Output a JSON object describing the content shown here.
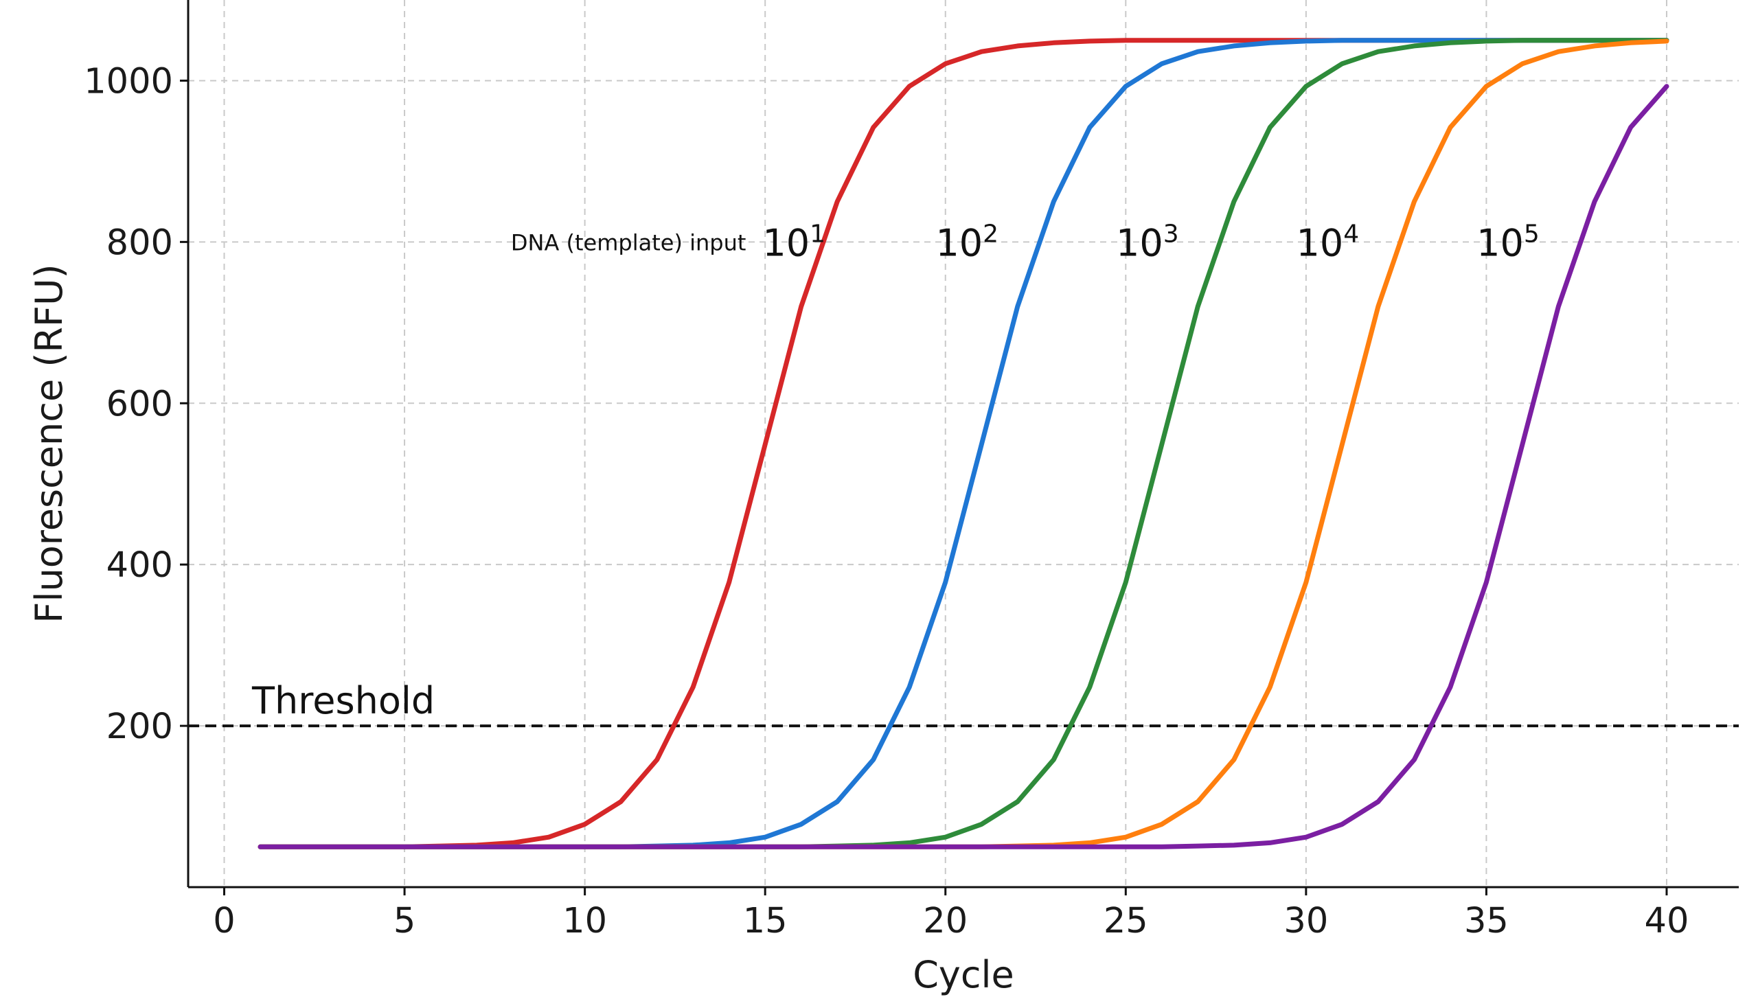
{
  "chart_data": {
    "type": "line",
    "title": "",
    "xlabel": "Cycle",
    "ylabel": "Fluorescence (RFU)",
    "xlim": [
      -1,
      42
    ],
    "ylim": [
      0,
      1100
    ],
    "xticks": [
      0,
      5,
      10,
      15,
      20,
      25,
      30,
      35,
      40
    ],
    "yticks": [
      200,
      400,
      600,
      800,
      1000
    ],
    "grid": true,
    "legend": "none",
    "x": [
      1,
      2,
      3,
      4,
      5,
      6,
      7,
      8,
      9,
      10,
      11,
      12,
      13,
      14,
      15,
      16,
      17,
      18,
      19,
      20,
      21,
      22,
      23,
      24,
      25,
      26,
      27,
      28,
      29,
      30,
      31,
      32,
      33,
      34,
      35,
      36,
      37,
      38,
      39,
      40
    ],
    "series": [
      {
        "color": "#d62728",
        "midpoint": 15,
        "label_base": "10",
        "label_exp": "1",
        "label_cycle": 15.8,
        "values": [
          50,
          50,
          50,
          50,
          50,
          51,
          52,
          55,
          62,
          78,
          106,
          158,
          248,
          378,
          549,
          720,
          850,
          942,
          993,
          1021,
          1036,
          1043,
          1047,
          1049,
          1050,
          1050,
          1050,
          1050,
          1050,
          1050,
          1050,
          1050,
          1050,
          1050,
          1050,
          1050,
          1050,
          1050,
          1050,
          1050
        ]
      },
      {
        "color": "#1f77d4",
        "midpoint": 20,
        "label_base": "10",
        "label_exp": "2",
        "label_cycle": 20.6,
        "values": [
          50,
          50,
          50,
          50,
          50,
          50,
          50,
          50,
          50,
          50,
          50,
          51,
          52,
          55,
          62,
          78,
          106,
          158,
          248,
          378,
          549,
          720,
          850,
          942,
          993,
          1021,
          1036,
          1043,
          1047,
          1049,
          1050,
          1050,
          1050,
          1050,
          1050,
          1050,
          1050,
          1050,
          1050,
          1050
        ]
      },
      {
        "color": "#2e8b3a",
        "midpoint": 25,
        "label_base": "10",
        "label_exp": "3",
        "label_cycle": 25.6,
        "values": [
          50,
          50,
          50,
          50,
          50,
          50,
          50,
          50,
          50,
          50,
          50,
          50,
          50,
          50,
          50,
          50,
          51,
          52,
          55,
          62,
          78,
          106,
          158,
          248,
          378,
          549,
          720,
          850,
          942,
          993,
          1021,
          1036,
          1043,
          1047,
          1049,
          1050,
          1050,
          1050,
          1050,
          1050
        ]
      },
      {
        "color": "#ff7f0e",
        "midpoint": 30,
        "label_base": "10",
        "label_exp": "4",
        "label_cycle": 30.6,
        "values": [
          50,
          50,
          50,
          50,
          50,
          50,
          50,
          50,
          50,
          50,
          50,
          50,
          50,
          50,
          50,
          50,
          50,
          50,
          50,
          50,
          50,
          51,
          52,
          55,
          62,
          78,
          106,
          158,
          248,
          378,
          549,
          720,
          850,
          942,
          993,
          1021,
          1036,
          1043,
          1047,
          1049
        ]
      },
      {
        "color": "#7b1fa2",
        "midpoint": 35,
        "label_base": "10",
        "label_exp": "5",
        "label_cycle": 35.6,
        "values": [
          50,
          50,
          50,
          50,
          50,
          50,
          50,
          50,
          50,
          50,
          50,
          50,
          50,
          50,
          50,
          50,
          50,
          50,
          50,
          50,
          50,
          50,
          50,
          50,
          50,
          50,
          51,
          52,
          55,
          62,
          78,
          106,
          158,
          248,
          378,
          549,
          720,
          850,
          942,
          993
        ]
      }
    ],
    "threshold": {
      "value": 200,
      "label": "Threshold",
      "label_cycle": 1.0
    },
    "annotation": {
      "text": "DNA (template) input",
      "cycle": 14.7,
      "value": 800
    }
  }
}
